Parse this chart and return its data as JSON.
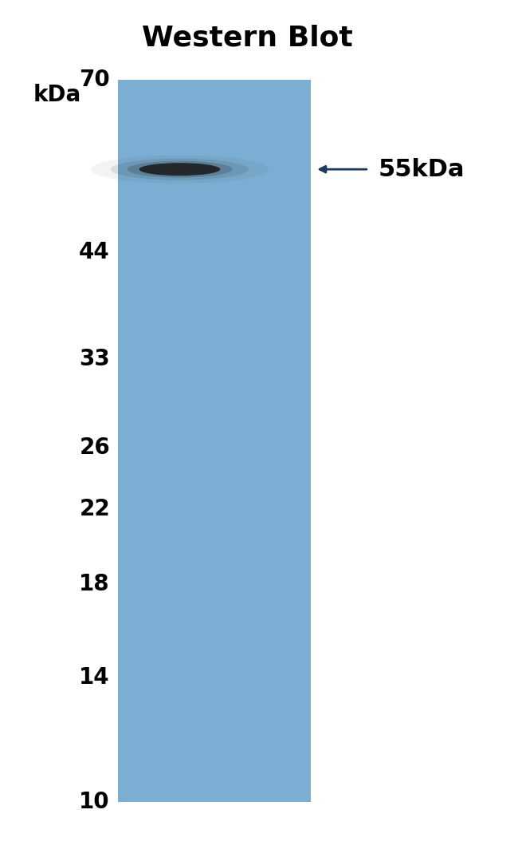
{
  "title": "Western Blot",
  "title_fontsize": 26,
  "title_fontweight": "bold",
  "bg_color": "#ffffff",
  "blot_color": "#7BAED2",
  "label_fontsize": 20,
  "kda_labels": [
    70,
    44,
    33,
    26,
    22,
    18,
    14,
    10
  ],
  "band_color": "#1e1e1e",
  "annotation_fontsize": 22,
  "blot_color_grad_top": "#89BBD8",
  "blot_color_grad_bot": "#6B9FC4"
}
